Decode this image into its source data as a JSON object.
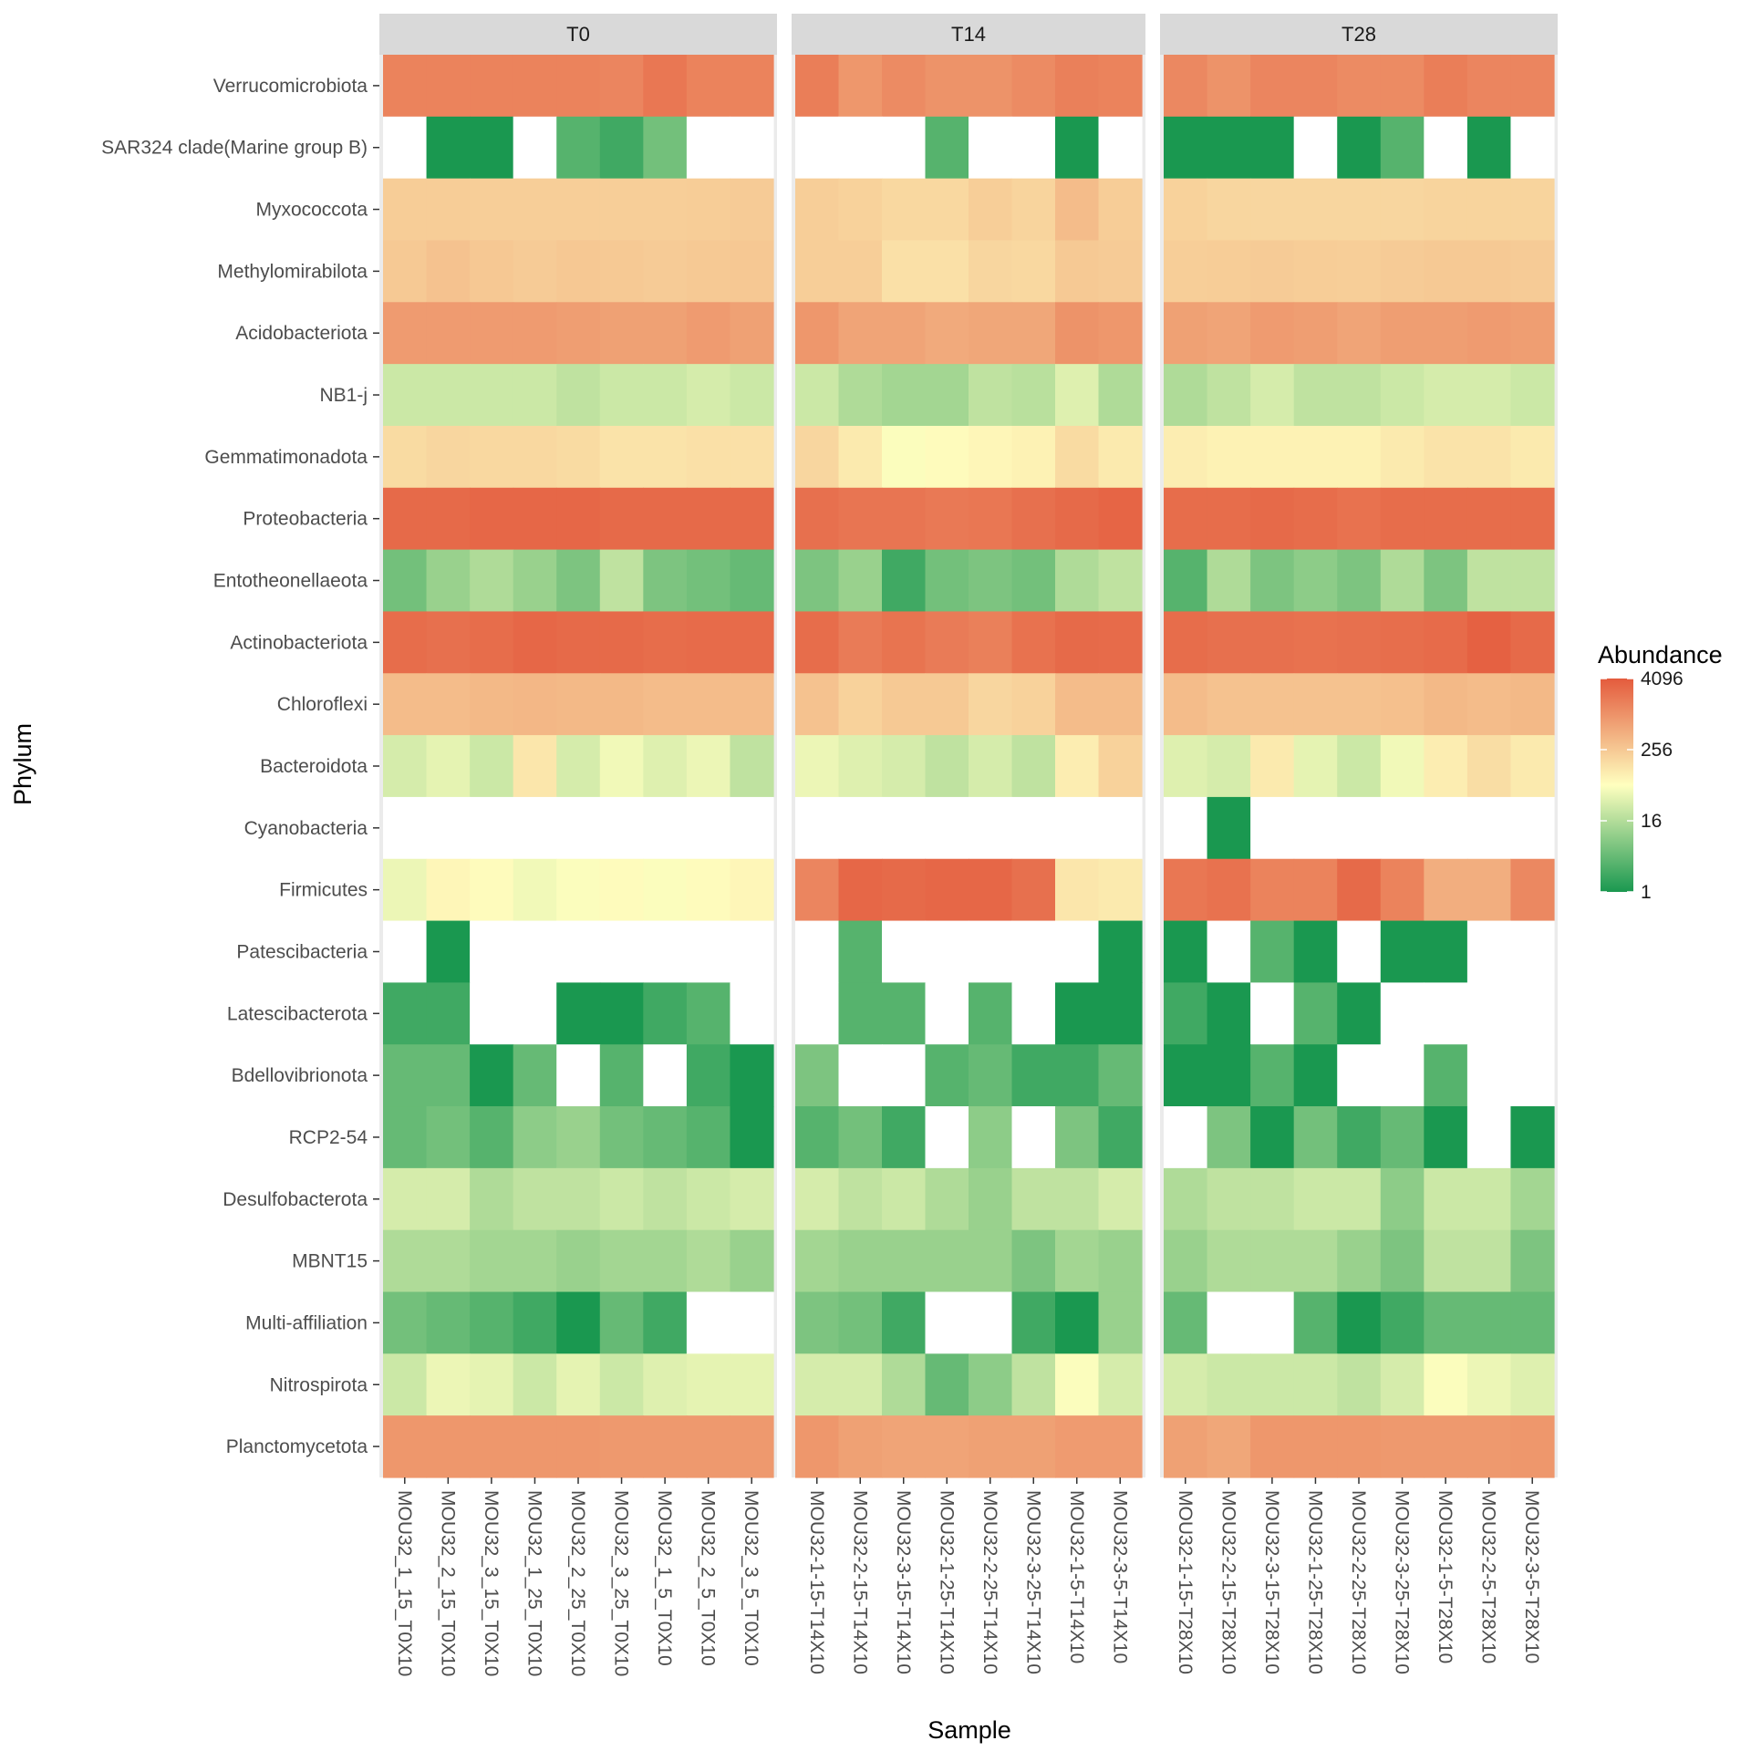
{
  "chart_data": {
    "type": "heatmap",
    "xlabel": "Sample",
    "ylabel": "Phylum",
    "colors": {
      "low": "#1a9850",
      "mid": "#ffffbf",
      "high": "#e45b3d",
      "missing": "#ffffff",
      "panel_bg": "#ebebeb",
      "strip_bg": "#d9d9d9"
    },
    "color_scale": "log2",
    "legend": {
      "title": "Abundance",
      "ticks": [
        "4096",
        "256",
        "16",
        "1"
      ],
      "tick_values": [
        4096,
        256,
        16,
        1
      ],
      "range": [
        1,
        4096
      ],
      "position": "right"
    },
    "phyla": [
      "Verrucomicrobiota",
      "SAR324 clade(Marine group B)",
      "Myxococcota",
      "Methylomirabilota",
      "Acidobacteriota",
      "NB1-j",
      "Gemmatimonadota",
      "Proteobacteria",
      "Entotheonellaeota",
      "Actinobacteriota",
      "Chloroflexi",
      "Bacteroidota",
      "Cyanobacteria",
      "Firmicutes",
      "Patescibacteria",
      "Latescibacterota",
      "Bdellovibrionota",
      "RCP2-54",
      "Desulfobacterota",
      "MBNT15",
      "Multi-affiliation",
      "Nitrospirota",
      "Planctomycetota"
    ],
    "panels": [
      {
        "title": "T0",
        "samples": [
          "MOU32_1_15_T0X10",
          "MOU32_2_15_T0X10",
          "MOU32_3_15_T0X10",
          "MOU32_1_25_T0X10",
          "MOU32_2_25_T0X10",
          "MOU32_3_25_T0X10",
          "MOU32_1_5_T0X10",
          "MOU32_2_5_T0X10",
          "MOU32_3_5_T0X10"
        ],
        "values": [
          [
            1500,
            1500,
            1500,
            1500,
            1500,
            1400,
            2000,
            1500,
            1500
          ],
          [
            null,
            1,
            1,
            null,
            3,
            2,
            5,
            null,
            null
          ],
          [
            230,
            230,
            220,
            220,
            220,
            220,
            220,
            230,
            240
          ],
          [
            250,
            300,
            260,
            240,
            260,
            250,
            240,
            250,
            260
          ],
          [
            800,
            800,
            800,
            800,
            750,
            700,
            700,
            800,
            700
          ],
          [
            25,
            25,
            25,
            25,
            20,
            25,
            25,
            30,
            25
          ],
          [
            160,
            180,
            170,
            170,
            160,
            130,
            130,
            140,
            140
          ],
          [
            2800,
            2800,
            3000,
            3000,
            3000,
            2800,
            2800,
            2800,
            2800
          ],
          [
            5,
            10,
            15,
            10,
            6,
            20,
            6,
            5,
            4
          ],
          [
            2600,
            2400,
            2600,
            3000,
            2800,
            2800,
            2600,
            2700,
            2700
          ],
          [
            350,
            350,
            380,
            400,
            380,
            380,
            350,
            350,
            350
          ],
          [
            30,
            40,
            25,
            120,
            30,
            50,
            35,
            45,
            20
          ],
          [
            null,
            null,
            null,
            null,
            null,
            null,
            null,
            null,
            null
          ],
          [
            45,
            80,
            70,
            50,
            60,
            70,
            60,
            70,
            80
          ],
          [
            null,
            1,
            null,
            null,
            null,
            null,
            null,
            null,
            null
          ],
          [
            2,
            2,
            null,
            null,
            1,
            1,
            2,
            3,
            null
          ],
          [
            4,
            4,
            1,
            4,
            null,
            3,
            null,
            2,
            1
          ],
          [
            4,
            5,
            3,
            8,
            10,
            5,
            4,
            3,
            1
          ],
          [
            30,
            30,
            15,
            20,
            20,
            25,
            20,
            25,
            30
          ],
          [
            15,
            15,
            12,
            12,
            10,
            12,
            12,
            15,
            10
          ],
          [
            5,
            4,
            3,
            2,
            1,
            4,
            2,
            null,
            null
          ],
          [
            25,
            45,
            40,
            25,
            40,
            25,
            35,
            40,
            40
          ],
          [
            900,
            900,
            900,
            900,
            900,
            850,
            850,
            850,
            850
          ]
        ]
      },
      {
        "title": "T14",
        "samples": [
          "MOU32-1-15-T14X10",
          "MOU32-2-15-T14X10",
          "MOU32-3-15-T14X10",
          "MOU32-1-25-T14X10",
          "MOU32-2-25-T14X10",
          "MOU32-3-25-T14X10",
          "MOU32-1-5-T14X10",
          "MOU32-3-5-T14X10"
        ],
        "values": [
          [
            1700,
            900,
            1200,
            1000,
            1000,
            1200,
            1600,
            1500
          ],
          [
            null,
            null,
            null,
            3,
            null,
            null,
            1,
            null
          ],
          [
            220,
            200,
            170,
            170,
            220,
            190,
            350,
            230
          ],
          [
            220,
            220,
            140,
            140,
            180,
            170,
            250,
            240
          ],
          [
            900,
            650,
            650,
            550,
            600,
            600,
            1000,
            900
          ],
          [
            25,
            15,
            12,
            12,
            20,
            18,
            35,
            15
          ],
          [
            180,
            110,
            60,
            70,
            80,
            90,
            160,
            110
          ],
          [
            2400,
            2100,
            2100,
            1900,
            2000,
            2400,
            2800,
            3200
          ],
          [
            6,
            10,
            2,
            5,
            6,
            5,
            15,
            20
          ],
          [
            2600,
            1800,
            2200,
            1800,
            1600,
            2300,
            2800,
            2700
          ],
          [
            300,
            200,
            250,
            250,
            180,
            200,
            350,
            350
          ],
          [
            45,
            35,
            30,
            20,
            30,
            20,
            100,
            200
          ],
          [
            null,
            null,
            null,
            null,
            null,
            null,
            null,
            null
          ],
          [
            1400,
            3000,
            2800,
            3000,
            3000,
            2400,
            120,
            110
          ],
          [
            null,
            3,
            null,
            null,
            null,
            null,
            null,
            1
          ],
          [
            null,
            3,
            3,
            null,
            3,
            null,
            1,
            1
          ],
          [
            6,
            null,
            null,
            3,
            4,
            2,
            2,
            4
          ],
          [
            3,
            5,
            2,
            null,
            8,
            null,
            6,
            2
          ],
          [
            30,
            20,
            25,
            15,
            10,
            20,
            20,
            30
          ],
          [
            12,
            10,
            10,
            10,
            10,
            6,
            12,
            10
          ],
          [
            6,
            5,
            2,
            null,
            null,
            2,
            1,
            10
          ],
          [
            30,
            30,
            15,
            4,
            8,
            20,
            60,
            30
          ],
          [
            900,
            700,
            650,
            650,
            700,
            700,
            800,
            800
          ]
        ]
      },
      {
        "title": "T28",
        "samples": [
          "MOU32-1-15-T28X10",
          "MOU32-2-15-T28X10",
          "MOU32-3-15-T28X10",
          "MOU32-1-25-T28X10",
          "MOU32-2-25-T28X10",
          "MOU32-3-25-T28X10",
          "MOU32-1-5-T28X10",
          "MOU32-2-5-T28X10",
          "MOU32-3-5-T28X10"
        ],
        "values": [
          [
            1300,
            1000,
            1400,
            1400,
            1200,
            1200,
            1700,
            1400,
            1400
          ],
          [
            1,
            1,
            1,
            null,
            1,
            3,
            null,
            1,
            null
          ],
          [
            200,
            180,
            180,
            180,
            180,
            180,
            190,
            190,
            190
          ],
          [
            220,
            230,
            240,
            230,
            220,
            240,
            250,
            250,
            240
          ],
          [
            700,
            650,
            800,
            750,
            650,
            750,
            750,
            800,
            750
          ],
          [
            15,
            20,
            30,
            20,
            20,
            25,
            30,
            30,
            25
          ],
          [
            100,
            90,
            90,
            90,
            90,
            110,
            130,
            130,
            110
          ],
          [
            2600,
            2600,
            2800,
            2600,
            2300,
            2600,
            2600,
            2600,
            2600
          ],
          [
            3,
            15,
            6,
            8,
            6,
            15,
            6,
            20,
            20
          ],
          [
            2600,
            2400,
            2400,
            2300,
            2400,
            2500,
            2700,
            3500,
            2800
          ],
          [
            350,
            300,
            300,
            300,
            300,
            320,
            380,
            350,
            380
          ],
          [
            35,
            30,
            110,
            40,
            25,
            50,
            100,
            150,
            110
          ],
          [
            null,
            1,
            null,
            null,
            null,
            null,
            null,
            null,
            null
          ],
          [
            2000,
            2300,
            1500,
            1500,
            2800,
            1500,
            500,
            500,
            1300
          ],
          [
            1,
            null,
            3,
            1,
            null,
            1,
            1,
            null,
            null
          ],
          [
            2,
            1,
            null,
            3,
            1,
            null,
            null,
            null,
            null
          ],
          [
            1,
            1,
            3,
            1,
            null,
            null,
            3,
            null,
            null
          ],
          [
            null,
            6,
            1,
            5,
            2,
            4,
            1,
            null,
            1
          ],
          [
            15,
            20,
            20,
            25,
            25,
            8,
            25,
            25,
            12
          ],
          [
            10,
            15,
            15,
            15,
            10,
            6,
            20,
            20,
            6
          ],
          [
            4,
            null,
            null,
            3,
            1,
            2,
            4,
            4,
            4
          ],
          [
            30,
            25,
            25,
            25,
            20,
            30,
            60,
            45,
            35
          ],
          [
            700,
            600,
            900,
            900,
            900,
            850,
            850,
            850,
            900
          ]
        ]
      }
    ]
  }
}
